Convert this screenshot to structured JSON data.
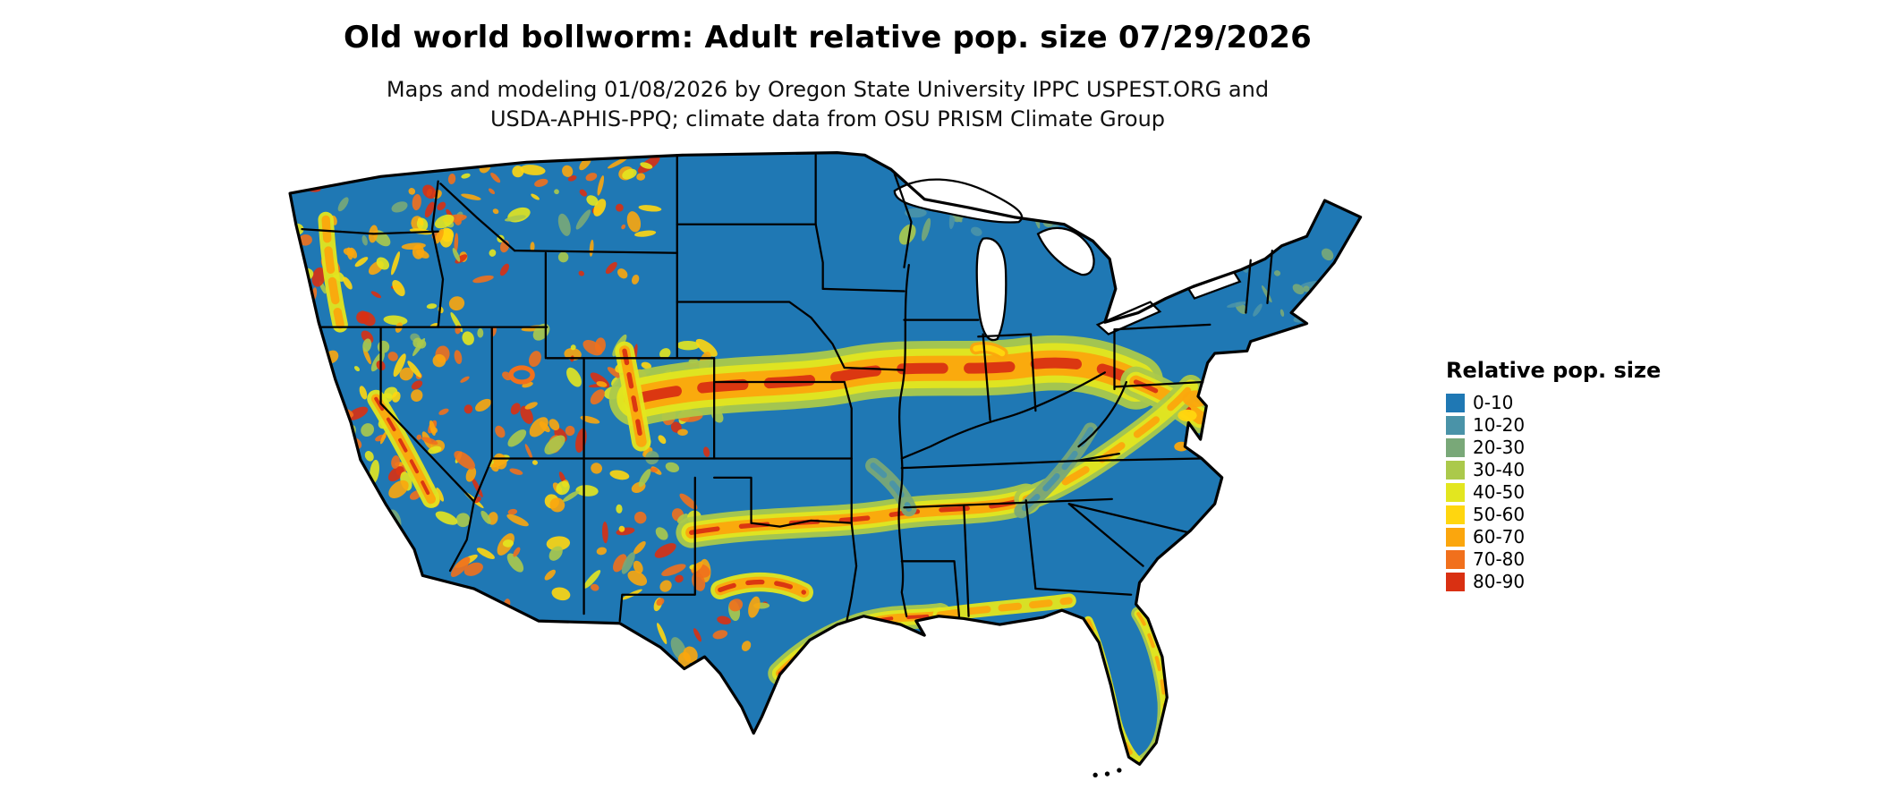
{
  "title": "Old world bollworm: Adult relative pop. size 07/29/2026",
  "subtitle": {
    "line1": "Maps and modeling 01/08/2026 by Oregon State University IPPC USPEST.ORG and",
    "line2": "USDA-APHIS-PPQ; climate data from OSU PRISM Climate Group"
  },
  "legend": {
    "title": "Relative pop. size",
    "items": [
      {
        "label": "0-10",
        "color": "#1f78b4"
      },
      {
        "label": "10-20",
        "color": "#4a93a8"
      },
      {
        "label": "20-30",
        "color": "#79a878"
      },
      {
        "label": "30-40",
        "color": "#abc94b"
      },
      {
        "label": "40-50",
        "color": "#e3e61f"
      },
      {
        "label": "50-60",
        "color": "#ffd60f"
      },
      {
        "label": "60-70",
        "color": "#fba60d"
      },
      {
        "label": "70-80",
        "color": "#f1701c"
      },
      {
        "label": "80-90",
        "color": "#d93012"
      }
    ]
  },
  "map": {
    "name": "Continental United States relative population heat map",
    "palette": {
      "base": "#1f78b4",
      "teal": "#4a93a8",
      "green": "#79a878",
      "yellowgreen": "#abc94b",
      "yellow": "#e3e61f",
      "gold": "#ffd60f",
      "orange": "#fba60d",
      "deep_orange": "#f1701c",
      "red": "#d93012",
      "water": "#ffffff",
      "border": "#000000"
    }
  }
}
